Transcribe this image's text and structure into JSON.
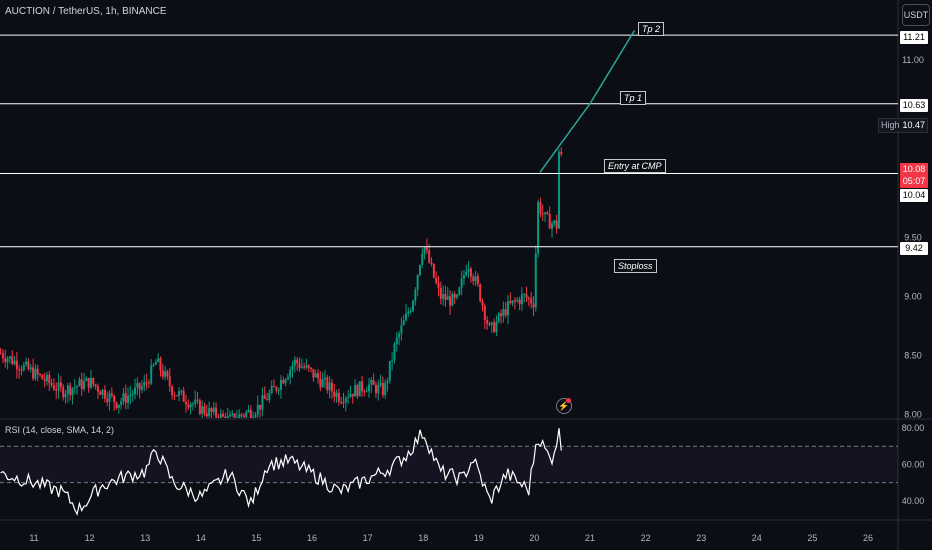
{
  "header": {
    "symbol": "AUCTION / TetherUS, 1h, BINANCE",
    "currency_button": "USDT"
  },
  "callouts": {
    "tp2": "Tp 2",
    "tp1": "Tp 1",
    "entry": "Entry at CMP",
    "stoploss": "Stoploss"
  },
  "price_tags": {
    "tp2": "11.21",
    "tp1": "10.63",
    "high_label": "High",
    "high_value": "10.47",
    "current": "10.08",
    "countdown": "05:07",
    "entry": "10.04",
    "stoploss": "9.42"
  },
  "rsi": {
    "title": "RSI (14, close, SMA, 14, 2)"
  },
  "colors": {
    "background": "#0c0e15",
    "up_candle": "#089981",
    "down_candle": "#f23645",
    "rsi_band": "#7e57c2",
    "line_level": "#ffffff",
    "target_line": "#26a69a"
  },
  "chart_data": {
    "type": "candlestick",
    "symbol": "AUCTION/USDT",
    "interval": "1h",
    "exchange": "BINANCE",
    "ylim": [
      8.0,
      11.4
    ],
    "y_ticks": [
      "11.00",
      "9.50",
      "9.00",
      "8.50",
      "8.00"
    ],
    "x_ticks": [
      "11",
      "12",
      "13",
      "14",
      "15",
      "16",
      "17",
      "18",
      "19",
      "20",
      "21",
      "22",
      "23",
      "24",
      "25",
      "26"
    ],
    "levels": [
      {
        "name": "Tp 2",
        "price": 11.21
      },
      {
        "name": "Tp 1",
        "price": 10.63
      },
      {
        "name": "Entry at CMP",
        "price": 10.04
      },
      {
        "name": "Stoploss",
        "price": 9.42
      }
    ],
    "high": 10.47,
    "last_price": 10.08,
    "target_path": [
      {
        "day": 20.1,
        "price": 10.05
      },
      {
        "day": 21.0,
        "price": 10.63
      },
      {
        "day": 21.8,
        "price": 11.25
      }
    ],
    "price_path": [
      {
        "day": 10.4,
        "price": 8.52
      },
      {
        "day": 11.0,
        "price": 8.35
      },
      {
        "day": 11.5,
        "price": 8.2
      },
      {
        "day": 12.0,
        "price": 8.28
      },
      {
        "day": 12.5,
        "price": 8.1
      },
      {
        "day": 13.0,
        "price": 8.25
      },
      {
        "day": 13.2,
        "price": 8.45
      },
      {
        "day": 13.5,
        "price": 8.2
      },
      {
        "day": 14.0,
        "price": 8.05
      },
      {
        "day": 14.5,
        "price": 7.95
      },
      {
        "day": 15.0,
        "price": 8.05
      },
      {
        "day": 15.3,
        "price": 8.2
      },
      {
        "day": 15.7,
        "price": 8.45
      },
      {
        "day": 16.0,
        "price": 8.35
      },
      {
        "day": 16.5,
        "price": 8.15
      },
      {
        "day": 17.0,
        "price": 8.25
      },
      {
        "day": 17.3,
        "price": 8.2
      },
      {
        "day": 17.5,
        "price": 8.6
      },
      {
        "day": 17.8,
        "price": 8.95
      },
      {
        "day": 18.0,
        "price": 9.45
      },
      {
        "day": 18.3,
        "price": 9.0
      },
      {
        "day": 18.6,
        "price": 8.95
      },
      {
        "day": 18.8,
        "price": 9.3
      },
      {
        "day": 19.0,
        "price": 9.05
      },
      {
        "day": 19.2,
        "price": 8.7
      },
      {
        "day": 19.5,
        "price": 8.9
      },
      {
        "day": 19.8,
        "price": 9.0
      },
      {
        "day": 20.0,
        "price": 8.95
      },
      {
        "day": 20.05,
        "price": 9.8
      },
      {
        "day": 20.2,
        "price": 9.65
      },
      {
        "day": 20.4,
        "price": 9.6
      },
      {
        "day": 20.45,
        "price": 10.35
      },
      {
        "day": 20.5,
        "price": 10.08
      }
    ],
    "rsi_ylim": [
      30,
      80
    ],
    "rsi_ticks": [
      "80.00",
      "60.00",
      "40.00"
    ],
    "rsi_bands": [
      70,
      50
    ],
    "rsi_path": [
      {
        "day": 10.4,
        "price": 55
      },
      {
        "day": 11.0,
        "price": 50
      },
      {
        "day": 11.5,
        "price": 45
      },
      {
        "day": 11.8,
        "price": 35
      },
      {
        "day": 12.2,
        "price": 48
      },
      {
        "day": 12.6,
        "price": 53
      },
      {
        "day": 13.0,
        "price": 56
      },
      {
        "day": 13.2,
        "price": 68
      },
      {
        "day": 13.5,
        "price": 50
      },
      {
        "day": 14.0,
        "price": 42
      },
      {
        "day": 14.5,
        "price": 55
      },
      {
        "day": 14.9,
        "price": 38
      },
      {
        "day": 15.2,
        "price": 60
      },
      {
        "day": 15.6,
        "price": 62
      },
      {
        "day": 16.0,
        "price": 55
      },
      {
        "day": 16.5,
        "price": 45
      },
      {
        "day": 17.0,
        "price": 52
      },
      {
        "day": 17.4,
        "price": 58
      },
      {
        "day": 17.7,
        "price": 65
      },
      {
        "day": 18.0,
        "price": 78
      },
      {
        "day": 18.3,
        "price": 56
      },
      {
        "day": 18.7,
        "price": 52
      },
      {
        "day": 18.9,
        "price": 63
      },
      {
        "day": 19.2,
        "price": 40
      },
      {
        "day": 19.5,
        "price": 55
      },
      {
        "day": 19.9,
        "price": 46
      },
      {
        "day": 20.05,
        "price": 76
      },
      {
        "day": 20.3,
        "price": 62
      },
      {
        "day": 20.45,
        "price": 78
      },
      {
        "day": 20.5,
        "price": 65
      }
    ]
  }
}
